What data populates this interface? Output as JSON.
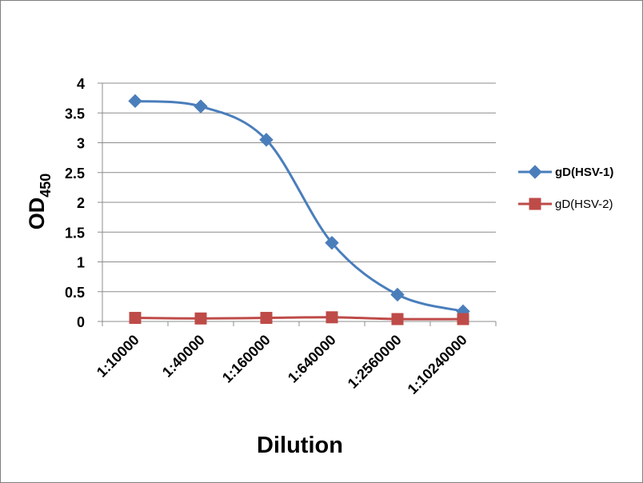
{
  "chart_data": {
    "type": "line",
    "categories": [
      "1:10000",
      "1:40000",
      "1:160000",
      "1:640000",
      "1:2560000",
      "1:10240000"
    ],
    "series": [
      {
        "name": "gD(HSV-1)",
        "color": "#4a7ebb",
        "marker": "diamond",
        "values": [
          3.7,
          3.61,
          3.05,
          1.32,
          0.45,
          0.17
        ]
      },
      {
        "name": "gD(HSV-2)",
        "color": "#be4b48",
        "marker": "square",
        "values": [
          0.06,
          0.05,
          0.06,
          0.07,
          0.04,
          0.04
        ]
      }
    ],
    "xlabel": "Dilution",
    "ylabel": {
      "main": "OD",
      "sub": "450"
    },
    "ylim": [
      0,
      4
    ],
    "yticks": [
      "0",
      "0.5",
      "1",
      "1.5",
      "2",
      "2.5",
      "3",
      "3.5",
      "4"
    ],
    "grid": true,
    "legend": "right"
  }
}
